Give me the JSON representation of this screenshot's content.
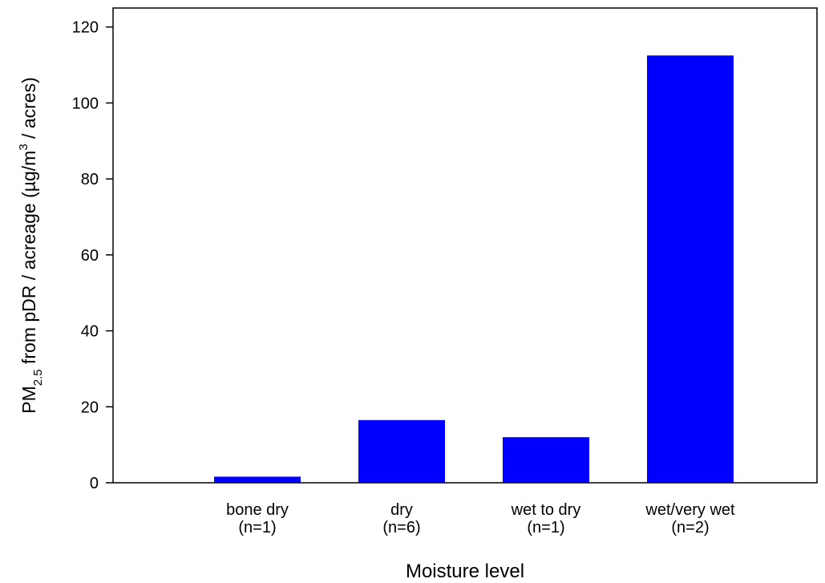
{
  "chart_data": {
    "type": "bar",
    "categories": [
      [
        "bone dry",
        "(n=1)"
      ],
      [
        "dry",
        "(n=6)"
      ],
      [
        "wet to dry",
        "(n=1)"
      ],
      [
        "wet/very wet",
        "(n=2)"
      ]
    ],
    "values": [
      1.6,
      16.5,
      12.0,
      112.5
    ],
    "xlabel": "Moisture level",
    "ylabel": {
      "prefix": "PM",
      "subscript": "2.5",
      "middle": " from pDR / acreage (µg/m",
      "superscript": "3",
      "suffix": " / acres)"
    },
    "ylim": [
      0,
      125
    ],
    "yticks": [
      0,
      20,
      40,
      60,
      80,
      100,
      120
    ],
    "bar_color": "#0000ff",
    "grid": false,
    "legend": "none"
  }
}
